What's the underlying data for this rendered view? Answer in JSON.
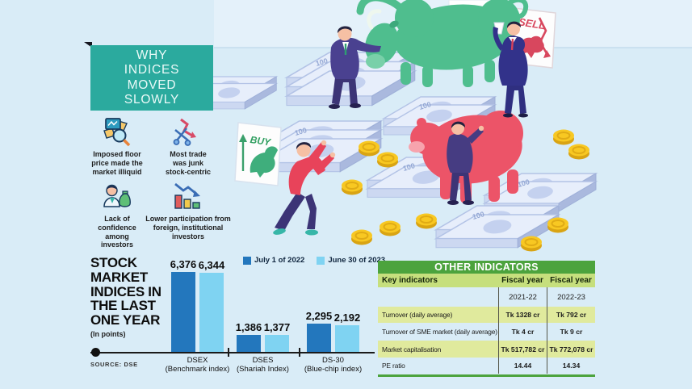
{
  "panel": {
    "title": "WHY INDICES MOVED SLOWLY",
    "reasons": [
      {
        "icon": "floor-price-icon",
        "label": "Imposed floor price made the market illiquid"
      },
      {
        "icon": "junk-stock-icon",
        "label": "Most trade was junk stock-centric"
      },
      {
        "icon": "confidence-icon",
        "label": "Lack of confidence among investors"
      },
      {
        "icon": "participation-icon",
        "label": "Lower participation from foreign, institutional investors"
      }
    ]
  },
  "illustration": {
    "buy_sign": "BUY",
    "sell_sign": "SELL",
    "banknote_value": "100"
  },
  "chart": {
    "title_lines": [
      "STOCK",
      "MARKET",
      "INDICES IN",
      "THE LAST",
      "ONE YEAR"
    ],
    "subtitle": "(In points)",
    "source": "SOURCE: DSE"
  },
  "chart_data": [
    {
      "type": "bar",
      "title": "STOCK MARKET INDICES IN THE LAST ONE YEAR",
      "unit": "In points",
      "source": "SOURCE: DSE",
      "categories": [
        {
          "name": "DSEX",
          "desc": "(Benchmark index)"
        },
        {
          "name": "DSES",
          "desc": "(Shariah Index)"
        },
        {
          "name": "DS-30",
          "desc": "(Blue-chip index)"
        }
      ],
      "series": [
        {
          "name": "July 1 of 2022",
          "color": "#2377bd",
          "values": [
            6376,
            1386,
            2295
          ],
          "labels": [
            "6,376",
            "1,386",
            "2,295"
          ]
        },
        {
          "name": "June 30 of 2023",
          "color": "#7fd3f2",
          "values": [
            6344,
            1377,
            2192
          ],
          "labels": [
            "6,344",
            "1,377",
            "2,192"
          ]
        }
      ],
      "ylim": [
        0,
        6376
      ],
      "grid": false,
      "legend_position": "top"
    },
    {
      "type": "table",
      "title": "OTHER INDICATORS",
      "columns": [
        "Key indicators",
        "Fiscal year",
        "Fiscal year"
      ],
      "subcolumns": [
        "",
        "2021-22",
        "2022-23"
      ],
      "rows": [
        {
          "label": "Turnover (daily average)",
          "values": [
            "Tk 1328 cr",
            "Tk 792 cr"
          ],
          "highlight": true
        },
        {
          "label": "Turnover of SME market (daily average)",
          "values": [
            "Tk 4 cr",
            "Tk 9 cr"
          ],
          "highlight": false
        },
        {
          "label": "Market capitalisation",
          "values": [
            "Tk 517,782 cr",
            "Tk 772,078 cr"
          ],
          "highlight": true
        },
        {
          "label": "PE ratio",
          "values": [
            "14.44",
            "14.34"
          ],
          "highlight": false
        }
      ],
      "accent_color": "#4ca33d",
      "header_color": "#c6df7d",
      "highlight_color": "#e0ea9d"
    }
  ]
}
